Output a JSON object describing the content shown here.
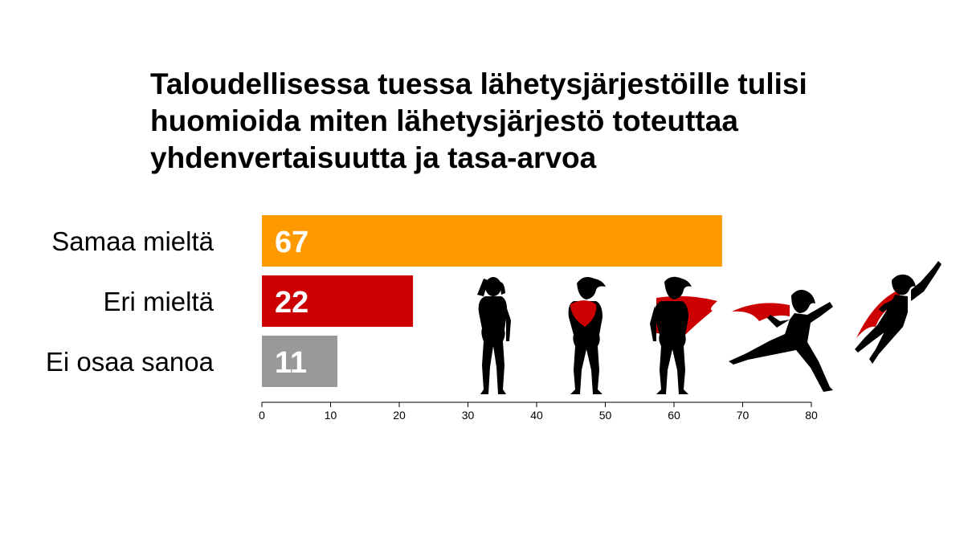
{
  "title_lines": [
    "Taloudellisessa tuessa lähetysjärjestöille tulisi",
    "huomioida miten lähetysjärjestö toteuttaa",
    "yhdenvertaisuutta ja tasa-arvoa"
  ],
  "colors": {
    "samaa": "#FF9900",
    "eri": "#CC0000",
    "ei_osaa": "#999999",
    "text": "#000000",
    "value_text": "#FFFFFF",
    "silhouette": "#000000",
    "cape": "#CC0000"
  },
  "decorations": {
    "icons": [
      "woman-silhouette-icon",
      "heroine-shield-icon",
      "heroine-cape-standing-icon",
      "heroine-running-icon",
      "heroine-flying-icon"
    ]
  },
  "chart_data": {
    "type": "bar",
    "orientation": "horizontal",
    "title": "Taloudellisessa tuessa lähetysjärjestöille tulisi huomioida miten lähetysjärjestö toteuttaa yhdenvertaisuutta ja tasa-arvoa",
    "categories": [
      "Samaa mieltä",
      "Eri mieltä",
      "Ei osaa sanoa"
    ],
    "values": [
      67,
      22,
      11
    ],
    "value_labels": [
      "67",
      "22",
      "11"
    ],
    "bar_colors": [
      "#FF9900",
      "#CC0000",
      "#999999"
    ],
    "xlim": [
      0,
      80
    ],
    "x_ticks": [
      0,
      10,
      20,
      30,
      40,
      50,
      60,
      70,
      80
    ],
    "x_tick_labels": [
      "0",
      "10",
      "20",
      "30",
      "40",
      "50",
      "60",
      "70",
      "80"
    ],
    "xlabel": "",
    "ylabel": "",
    "grid": false,
    "legend": "none"
  }
}
